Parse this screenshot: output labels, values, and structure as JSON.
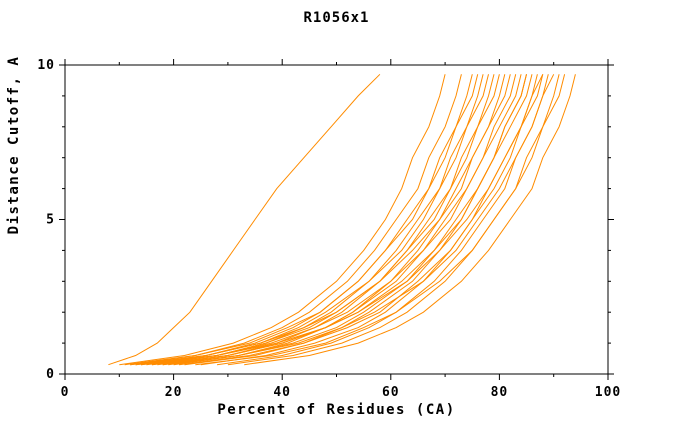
{
  "chart_data": {
    "type": "line",
    "title": "R1056x1",
    "xlabel": "Percent of Residues (CA)",
    "ylabel": "Distance Cutoff, A",
    "xlim": [
      0,
      100
    ],
    "ylim": [
      0,
      10
    ],
    "x_major_ticks": [
      0,
      20,
      40,
      60,
      80,
      100
    ],
    "x_minor_step": 10,
    "y_major_ticks": [
      0,
      5,
      10
    ],
    "y_minor_step": 1,
    "grid": false,
    "legend": "none",
    "line_color": "#ff8c00",
    "axis_color": "#000000",
    "background_color": "#ffffff",
    "y_values": [
      0.3,
      0.6,
      1,
      1.5,
      2,
      3,
      4,
      5,
      6,
      7,
      8,
      9,
      9.7
    ],
    "series": [
      [
        8,
        13,
        17,
        20,
        23,
        27,
        31,
        35,
        39,
        44,
        49,
        54,
        58
      ],
      [
        10,
        22,
        31,
        38,
        43,
        50,
        55,
        59,
        62,
        64,
        67,
        69,
        70
      ],
      [
        12,
        24,
        33,
        40,
        45,
        52,
        57,
        61,
        65,
        67,
        70,
        72,
        73
      ],
      [
        14,
        26,
        35,
        42,
        47,
        54,
        59,
        63,
        67,
        69,
        72,
        74,
        75
      ],
      [
        11,
        24,
        34,
        41,
        47,
        54,
        59,
        64,
        67,
        70,
        72,
        75,
        76
      ],
      [
        16,
        28,
        37,
        44,
        49,
        56,
        61,
        65,
        69,
        71,
        74,
        76,
        77
      ],
      [
        13,
        26,
        36,
        43,
        48,
        56,
        62,
        66,
        69,
        72,
        74,
        77,
        78
      ],
      [
        18,
        30,
        39,
        46,
        51,
        58,
        63,
        67,
        71,
        73,
        76,
        78,
        79
      ],
      [
        15,
        28,
        37,
        45,
        50,
        58,
        63,
        68,
        71,
        74,
        76,
        79,
        80
      ],
      [
        20,
        32,
        41,
        48,
        53,
        60,
        65,
        69,
        73,
        75,
        78,
        80,
        81
      ],
      [
        12,
        26,
        36,
        44,
        50,
        58,
        64,
        69,
        72,
        75,
        78,
        81,
        82
      ],
      [
        17,
        30,
        40,
        48,
        53,
        61,
        66,
        70,
        74,
        77,
        79,
        82,
        83
      ],
      [
        14,
        28,
        38,
        46,
        52,
        60,
        66,
        71,
        74,
        77,
        80,
        83,
        84
      ],
      [
        19,
        32,
        42,
        50,
        55,
        63,
        68,
        72,
        76,
        79,
        81,
        84,
        85
      ],
      [
        22,
        35,
        44,
        51,
        56,
        64,
        69,
        73,
        76,
        79,
        81,
        84,
        85
      ],
      [
        16,
        30,
        40,
        48,
        54,
        62,
        68,
        73,
        76,
        79,
        82,
        85,
        86
      ],
      [
        25,
        37,
        46,
        54,
        59,
        66,
        71,
        75,
        78,
        81,
        84,
        86,
        87
      ],
      [
        13,
        28,
        39,
        48,
        54,
        63,
        69,
        74,
        78,
        81,
        84,
        86,
        88
      ],
      [
        21,
        34,
        44,
        52,
        58,
        65,
        71,
        75,
        79,
        82,
        84,
        87,
        88
      ],
      [
        28,
        40,
        49,
        56,
        61,
        68,
        73,
        77,
        81,
        83,
        86,
        88,
        89
      ],
      [
        18,
        32,
        43,
        51,
        57,
        66,
        72,
        76,
        80,
        83,
        86,
        88,
        90
      ],
      [
        30,
        42,
        51,
        58,
        63,
        70,
        75,
        79,
        83,
        85,
        88,
        90,
        91
      ],
      [
        24,
        38,
        48,
        55,
        61,
        69,
        75,
        79,
        83,
        86,
        88,
        91,
        92
      ],
      [
        33,
        45,
        54,
        61,
        66,
        73,
        78,
        82,
        86,
        88,
        91,
        93,
        94
      ]
    ]
  }
}
